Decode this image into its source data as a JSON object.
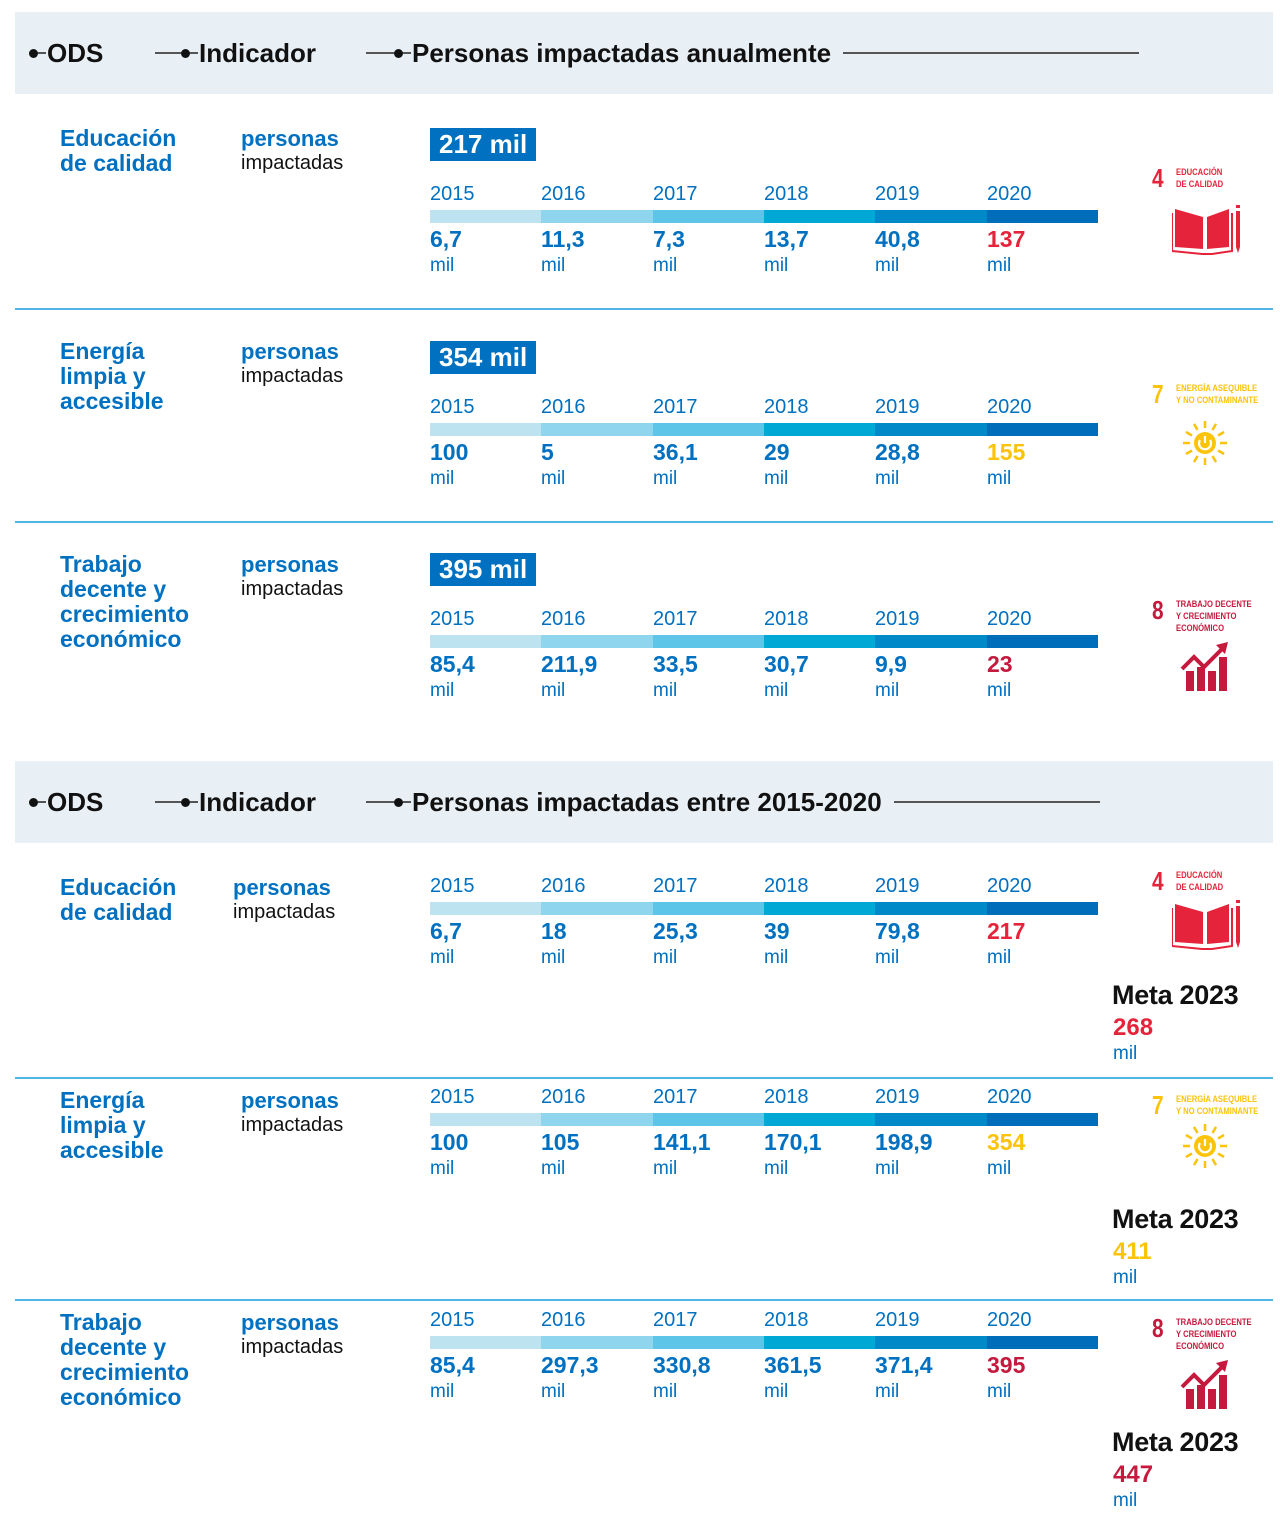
{
  "colors": {
    "blue": "#0070c0",
    "header_bg": "#e8f0f6",
    "separator": "#4eb5e4",
    "segments": [
      "#bde3f1",
      "#8fd5ee",
      "#5cc5e8",
      "#00a8d6",
      "#0089c9",
      "#006dbb"
    ],
    "sdg4": "#e5243b",
    "sdg7": "#fcc30b",
    "sdg8": "#c5193e"
  },
  "sections": [
    {
      "header": {
        "col1": "ODS",
        "col2": "Indicador",
        "col3": "Personas impactadas anualmente"
      }
    },
    {
      "header": {
        "col1": "ODS",
        "col2": "Indicador",
        "col3": "Personas impactadas entre 2015-2020"
      }
    }
  ],
  "chart_data": [
    {
      "type": "table",
      "title": "Personas impactadas anualmente",
      "unit": "mil",
      "categories": [
        "2015",
        "2016",
        "2017",
        "2018",
        "2019",
        "2020"
      ],
      "rows": [
        {
          "ods": "Educación de calidad",
          "ods_lines": [
            "Educación",
            "de calidad"
          ],
          "indicator_bold": "personas",
          "indicator_rest": "impactadas",
          "total": "217 mil",
          "values": [
            "6,7",
            "11,3",
            "7,3",
            "13,7",
            "40,8",
            "137"
          ],
          "highlight_color": "#e5243b",
          "sdg": {
            "number": "4",
            "label_lines": [
              "EDUCACIÓN",
              "DE CALIDAD"
            ],
            "icon": "book-pencil-icon",
            "color": "#e5243b"
          }
        },
        {
          "ods": "Energía limpia y accesible",
          "ods_lines": [
            "Energía",
            "limpia y",
            "accesible"
          ],
          "indicator_bold": "personas",
          "indicator_rest": "impactadas",
          "total": "354 mil",
          "values": [
            "100",
            "5",
            "36,1",
            "29",
            "28,8",
            "155"
          ],
          "highlight_color": "#fcc30b",
          "sdg": {
            "number": "7",
            "label_lines": [
              "ENERGÍA ASEQUIBLE",
              "Y NO CONTAMINANTE"
            ],
            "icon": "sun-power-icon",
            "color": "#fcc30b"
          }
        },
        {
          "ods": "Trabajo decente y crecimiento económico",
          "ods_lines": [
            "Trabajo",
            "decente y",
            "crecimiento",
            "económico"
          ],
          "indicator_bold": "personas",
          "indicator_rest": "impactadas",
          "total": "395 mil",
          "values": [
            "85,4",
            "211,9",
            "33,5",
            "30,7",
            "9,9",
            "23"
          ],
          "highlight_color": "#c5193e",
          "sdg": {
            "number": "8",
            "label_lines": [
              "TRABAJO DECENTE",
              "Y CRECIMIENTO",
              "ECONÓMICO"
            ],
            "icon": "growth-chart-icon",
            "color": "#c5193e"
          }
        }
      ]
    },
    {
      "type": "table",
      "title": "Personas impactadas entre 2015-2020",
      "unit": "mil",
      "categories": [
        "2015",
        "2016",
        "2017",
        "2018",
        "2019",
        "2020"
      ],
      "rows": [
        {
          "ods": "Educación de calidad",
          "ods_lines": [
            "Educación",
            "de calidad"
          ],
          "indicator_bold": "personas",
          "indicator_rest": "impactadas",
          "values": [
            "6,7",
            "18",
            "25,3",
            "39",
            "79,8",
            "217"
          ],
          "highlight_color": "#e5243b",
          "sdg": {
            "number": "4",
            "label_lines": [
              "EDUCACIÓN",
              "DE CALIDAD"
            ],
            "icon": "book-pencil-icon",
            "color": "#e5243b"
          },
          "meta": {
            "title": "Meta 2023",
            "value": "268",
            "unit": "mil"
          }
        },
        {
          "ods": "Energía limpia y accesible",
          "ods_lines": [
            "Energía",
            "limpia y",
            "accesible"
          ],
          "indicator_bold": "personas",
          "indicator_rest": "impactadas",
          "values": [
            "100",
            "105",
            "141,1",
            "170,1",
            "198,9",
            "354"
          ],
          "highlight_color": "#fcc30b",
          "sdg": {
            "number": "7",
            "label_lines": [
              "ENERGÍA ASEQUIBLE",
              "Y NO CONTAMINANTE"
            ],
            "icon": "sun-power-icon",
            "color": "#fcc30b"
          },
          "meta": {
            "title": "Meta 2023",
            "value": "411",
            "unit": "mil"
          }
        },
        {
          "ods": "Trabajo decente y crecimiento económico",
          "ods_lines": [
            "Trabajo",
            "decente y",
            "crecimiento",
            "económico"
          ],
          "indicator_bold": "personas",
          "indicator_rest": "impactadas",
          "values": [
            "85,4",
            "297,3",
            "330,8",
            "361,5",
            "371,4",
            "395"
          ],
          "highlight_color": "#c5193e",
          "sdg": {
            "number": "8",
            "label_lines": [
              "TRABAJO DECENTE",
              "Y CRECIMIENTO",
              "ECONÓMICO"
            ],
            "icon": "growth-chart-icon",
            "color": "#c5193e"
          },
          "meta": {
            "title": "Meta 2023",
            "value": "447",
            "unit": "mil"
          }
        }
      ]
    }
  ]
}
